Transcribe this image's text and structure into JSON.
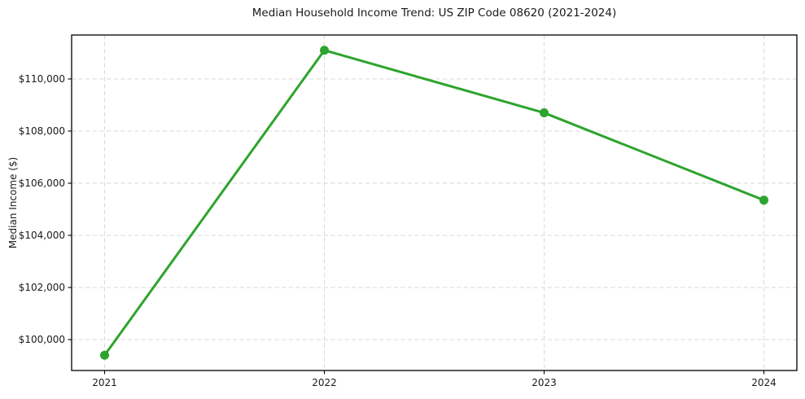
{
  "figure": {
    "background": "#ffffff"
  },
  "chart_data": {
    "type": "line",
    "title": "Median Household Income Trend: US ZIP Code 08620 (2021-2024)",
    "xlabel": "",
    "ylabel": "Median Income ($)",
    "x": [
      2021,
      2022,
      2023,
      2024
    ],
    "x_tick_labels": [
      "2021",
      "2022",
      "2023",
      "2024"
    ],
    "values": [
      99400,
      111100,
      108700,
      105350
    ],
    "y_ticks": [
      100000,
      102000,
      104000,
      106000,
      108000,
      110000
    ],
    "y_tick_labels": [
      "$100,000",
      "$102,000",
      "$104,000",
      "$106,000",
      "$108,000",
      "$110,000"
    ],
    "xlim": [
      2020.85,
      2024.15
    ],
    "ylim": [
      98815,
      111685
    ],
    "grid": true,
    "grid_style": "dashed",
    "legend": false,
    "line_color": "#2da42d",
    "marker": "circle",
    "marker_radius": 5.5,
    "line_width": 3,
    "grid_color": "#d5d5d5",
    "spine_color": "#000000",
    "text_color": "#1a1a1a"
  }
}
